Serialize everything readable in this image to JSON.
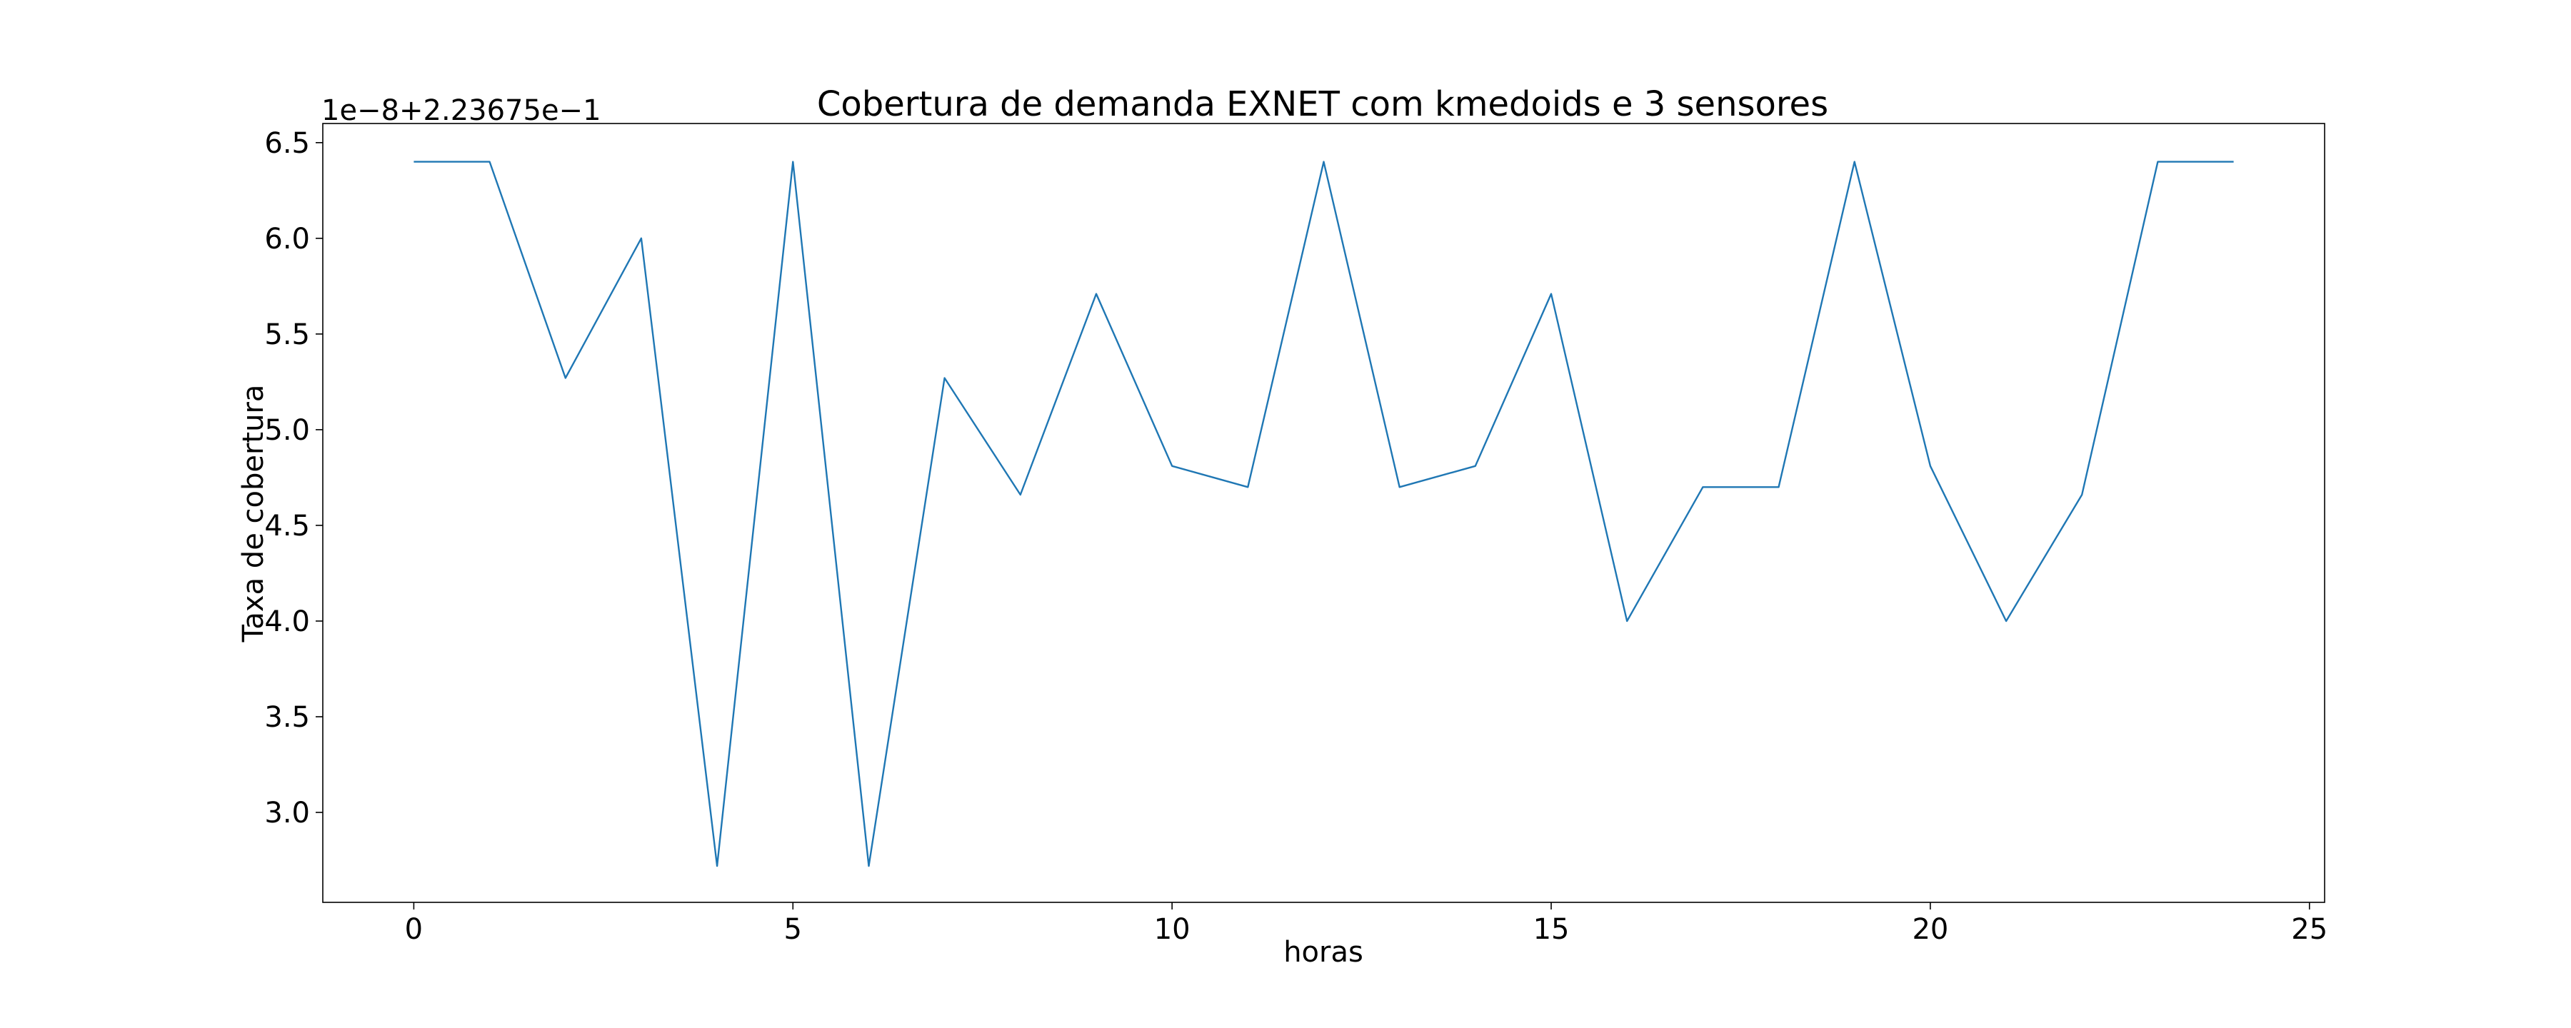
{
  "chart_data": {
    "type": "line",
    "title": "Cobertura de demanda EXNET com kmedoids e 3 sensores",
    "xlabel": "horas",
    "ylabel": "Taxa de cobertura",
    "y_offset_text": "1e−8+2.23675e−1",
    "xlim": [
      -1.2,
      25.2
    ],
    "ylim": [
      2.53,
      6.6
    ],
    "xticks": [
      0,
      5,
      10,
      15,
      20,
      25
    ],
    "xtick_labels": [
      "0",
      "5",
      "10",
      "15",
      "20",
      "25"
    ],
    "yticks": [
      3.0,
      3.5,
      4.0,
      4.5,
      5.0,
      5.5,
      6.0,
      6.5
    ],
    "ytick_labels": [
      "3.0",
      "3.5",
      "4.0",
      "4.5",
      "5.0",
      "5.5",
      "6.0",
      "6.5"
    ],
    "grid": false,
    "series": [
      {
        "color": "#1f77b4",
        "x": [
          0,
          1,
          2,
          3,
          4,
          5,
          6,
          7,
          8,
          9,
          10,
          11,
          12,
          13,
          14,
          15,
          16,
          17,
          18,
          19,
          20,
          21,
          22,
          23,
          24
        ],
        "values": [
          6.4,
          6.4,
          5.27,
          6.0,
          2.72,
          6.4,
          2.72,
          5.27,
          4.66,
          5.71,
          4.81,
          4.7,
          6.4,
          4.7,
          4.81,
          5.71,
          4.0,
          4.7,
          4.7,
          6.4,
          4.81,
          4.0,
          4.66,
          6.4,
          6.4
        ]
      }
    ]
  }
}
